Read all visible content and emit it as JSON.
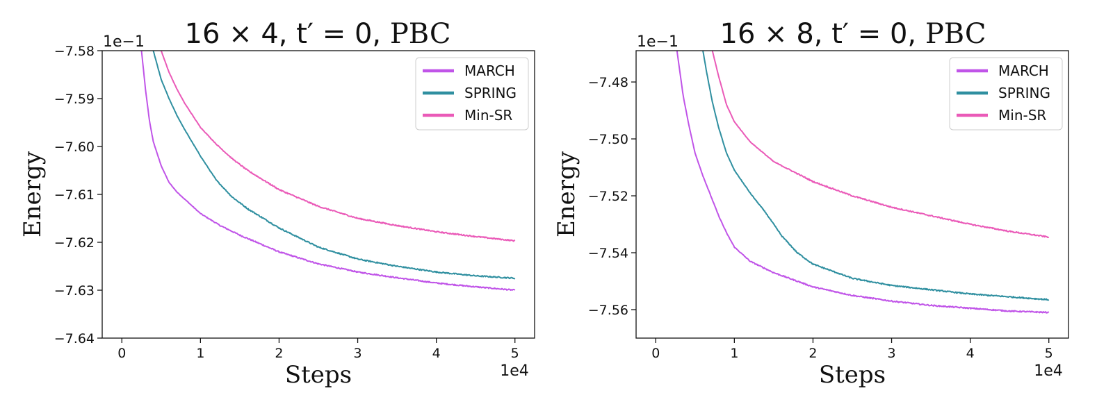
{
  "chart_data": [
    {
      "type": "line",
      "title_prefix": "16 × 4, t′ = 0,",
      "title_suffix": "PBC",
      "xlabel": "Steps",
      "ylabel": "Energy",
      "x_multiplier_label": "1e4",
      "y_multiplier_label": "1e−1",
      "xlim": [
        -0.25,
        5.25
      ],
      "ylim": [
        -7.64,
        -7.58
      ],
      "xticks": [
        0,
        1,
        2,
        3,
        4,
        5
      ],
      "xtick_labels": [
        "0",
        "1",
        "2",
        "3",
        "4",
        "5"
      ],
      "yticks": [
        -7.58,
        -7.59,
        -7.6,
        -7.61,
        -7.62,
        -7.63,
        -7.64
      ],
      "ytick_labels": [
        "−7.58",
        "−7.59",
        "−7.60",
        "−7.61",
        "−7.62",
        "−7.63",
        "−7.64"
      ],
      "legend_position": "upper-right",
      "series": [
        {
          "name": "MARCH",
          "color": "#c054e8",
          "x": [
            0.25,
            0.3,
            0.35,
            0.4,
            0.5,
            0.6,
            0.7,
            0.8,
            1.0,
            1.25,
            1.5,
            2.0,
            2.5,
            3.0,
            3.5,
            4.0,
            4.5,
            5.0
          ],
          "y": [
            -7.58,
            -7.588,
            -7.5945,
            -7.599,
            -7.604,
            -7.6075,
            -7.6095,
            -7.611,
            -7.614,
            -7.6165,
            -7.6185,
            -7.622,
            -7.6245,
            -7.6262,
            -7.6274,
            -7.6285,
            -7.6293,
            -7.63
          ]
        },
        {
          "name": "SPRING",
          "color": "#2f8fa0",
          "x": [
            0.4,
            0.5,
            0.6,
            0.7,
            0.8,
            1.0,
            1.2,
            1.4,
            1.6,
            2.0,
            2.5,
            3.0,
            3.5,
            4.0,
            4.5,
            5.0
          ],
          "y": [
            -7.58,
            -7.586,
            -7.59,
            -7.5935,
            -7.5965,
            -7.602,
            -7.607,
            -7.6105,
            -7.613,
            -7.617,
            -7.621,
            -7.6235,
            -7.625,
            -7.6262,
            -7.627,
            -7.6275
          ]
        },
        {
          "name": "Min-SR",
          "color": "#ea5ab8",
          "x": [
            0.5,
            0.6,
            0.7,
            0.8,
            1.0,
            1.2,
            1.4,
            1.6,
            2.0,
            2.5,
            3.0,
            3.5,
            4.0,
            4.5,
            5.0
          ],
          "y": [
            -7.58,
            -7.5845,
            -7.588,
            -7.591,
            -7.596,
            -7.5995,
            -7.6025,
            -7.605,
            -7.609,
            -7.6125,
            -7.615,
            -7.6165,
            -7.6178,
            -7.6188,
            -7.6197
          ]
        }
      ]
    },
    {
      "type": "line",
      "title_prefix": "16 × 8, t′ = 0,",
      "title_suffix": "PBC",
      "xlabel": "Steps",
      "ylabel": "Energy",
      "x_multiplier_label": "1e4",
      "y_multiplier_label": "1e−1",
      "xlim": [
        -0.25,
        5.25
      ],
      "ylim": [
        -7.57,
        -7.469
      ],
      "xticks": [
        0,
        1,
        2,
        3,
        4,
        5
      ],
      "xtick_labels": [
        "0",
        "1",
        "2",
        "3",
        "4",
        "5"
      ],
      "yticks": [
        -7.48,
        -7.5,
        -7.52,
        -7.54,
        -7.56
      ],
      "ytick_labels": [
        "−7.48",
        "−7.50",
        "−7.52",
        "−7.54",
        "−7.56"
      ],
      "legend_position": "upper-right",
      "series": [
        {
          "name": "MARCH",
          "color": "#c054e8",
          "x": [
            0.27,
            0.35,
            0.42,
            0.5,
            0.6,
            0.7,
            0.8,
            0.9,
            1.0,
            1.2,
            1.5,
            2.0,
            2.5,
            3.0,
            3.5,
            4.0,
            4.5,
            5.0
          ],
          "y": [
            -7.469,
            -7.485,
            -7.495,
            -7.505,
            -7.513,
            -7.52,
            -7.527,
            -7.533,
            -7.538,
            -7.543,
            -7.547,
            -7.552,
            -7.555,
            -7.557,
            -7.5585,
            -7.5595,
            -7.5605,
            -7.561
          ]
        },
        {
          "name": "SPRING",
          "color": "#2f8fa0",
          "x": [
            0.6,
            0.65,
            0.72,
            0.8,
            0.9,
            1.0,
            1.2,
            1.4,
            1.6,
            1.8,
            2.0,
            2.5,
            3.0,
            3.5,
            4.0,
            4.5,
            5.0
          ],
          "y": [
            -7.469,
            -7.477,
            -7.487,
            -7.496,
            -7.505,
            -7.511,
            -7.519,
            -7.526,
            -7.534,
            -7.54,
            -7.544,
            -7.549,
            -7.5515,
            -7.553,
            -7.5545,
            -7.5555,
            -7.5565
          ]
        },
        {
          "name": "Min-SR",
          "color": "#ea5ab8",
          "x": [
            0.72,
            0.8,
            0.9,
            1.0,
            1.2,
            1.5,
            2.0,
            2.5,
            3.0,
            3.5,
            4.0,
            4.5,
            5.0
          ],
          "y": [
            -7.469,
            -7.478,
            -7.488,
            -7.494,
            -7.501,
            -7.508,
            -7.515,
            -7.52,
            -7.524,
            -7.527,
            -7.53,
            -7.5325,
            -7.5345
          ]
        }
      ]
    }
  ]
}
